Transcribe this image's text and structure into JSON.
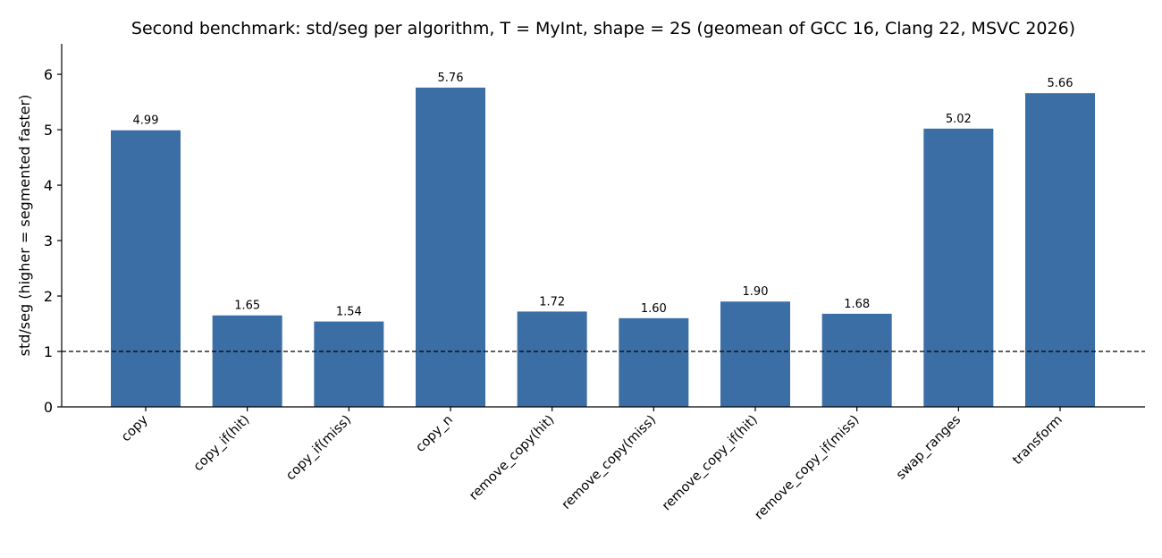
{
  "chart_data": {
    "type": "bar",
    "title": "Second benchmark: std/seg per algorithm, T = MyInt, shape = 2S (geomean of GCC 16, Clang 22, MSVC 2026)",
    "xlabel": "",
    "ylabel": "std/seg  (higher = segmented faster)",
    "categories": [
      "copy",
      "copy_if(hit)",
      "copy_if(miss)",
      "copy_n",
      "remove_copy(hit)",
      "remove_copy(miss)",
      "remove_copy_if(hit)",
      "remove_copy_if(miss)",
      "swap_ranges",
      "transform"
    ],
    "values": [
      4.99,
      1.65,
      1.54,
      5.76,
      1.72,
      1.6,
      1.9,
      1.68,
      5.02,
      5.66
    ],
    "data_labels": [
      "4.99",
      "1.65",
      "1.54",
      "5.76",
      "1.72",
      "1.60",
      "1.90",
      "1.68",
      "5.02",
      "5.66"
    ],
    "ylim": [
      0,
      6.55
    ],
    "yticks": [
      0,
      1,
      2,
      3,
      4,
      5,
      6
    ],
    "reference_line": 1,
    "bar_color": "#3b6ea5",
    "grid": false,
    "legend": "none"
  }
}
